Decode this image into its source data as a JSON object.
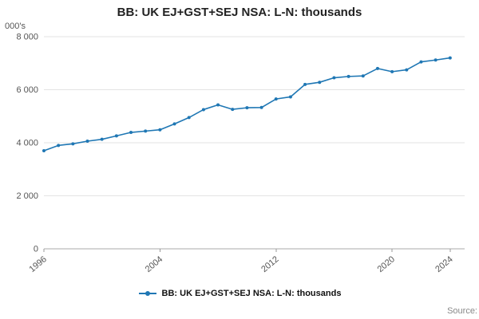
{
  "header": {
    "title": "BB: UK EJ+GST+SEJ NSA: L-N: thousands"
  },
  "footer": {
    "source_label": "Source:"
  },
  "legend": {
    "label": "BB: UK EJ+GST+SEJ NSA: L-N: thousands"
  },
  "chart_data": {
    "type": "line",
    "title": "BB: UK EJ+GST+SEJ NSA: L-N: thousands",
    "ylabel": "000's",
    "xlabel": "",
    "line_color": "#1f77b4",
    "grid": true,
    "legend_position": "bottom",
    "ylim": [
      0,
      8000
    ],
    "xlim": [
      1996,
      2025
    ],
    "yticks": [
      0,
      2000,
      4000,
      6000,
      8000
    ],
    "ytick_labels": [
      "0",
      "2 000",
      "4 000",
      "6 000",
      "8 000"
    ],
    "xticks": [
      1996,
      2004,
      2012,
      2020,
      2024
    ],
    "x": [
      1996,
      1997,
      1998,
      1999,
      2000,
      2001,
      2002,
      2003,
      2004,
      2005,
      2006,
      2007,
      2008,
      2009,
      2010,
      2011,
      2012,
      2013,
      2014,
      2015,
      2016,
      2017,
      2018,
      2019,
      2020,
      2021,
      2022,
      2023,
      2024
    ],
    "values": [
      3700,
      3900,
      3960,
      4060,
      4130,
      4260,
      4390,
      4440,
      4490,
      4710,
      4950,
      5250,
      5430,
      5260,
      5320,
      5330,
      5650,
      5730,
      6200,
      6280,
      6450,
      6500,
      6520,
      6800,
      6680,
      6750,
      7050,
      7120,
      7200
    ]
  }
}
